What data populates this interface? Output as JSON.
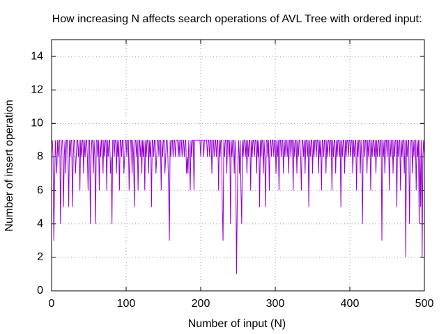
{
  "chart_data": {
    "type": "line",
    "title": "How increasing N affects search operations of AVL Tree with ordered input:",
    "x_label": "Number of input (N)",
    "y_label": "Number of insert operation",
    "xlim": [
      0,
      500
    ],
    "xticks": [
      0,
      100,
      200,
      300,
      400,
      500
    ],
    "ylim": [
      0,
      15
    ],
    "yticks": [
      0,
      2,
      4,
      6,
      8,
      10,
      12,
      14
    ],
    "grid": true,
    "x": [
      1,
      2,
      3,
      4,
      5,
      6,
      7,
      8,
      9,
      10,
      11,
      12,
      13,
      14,
      15,
      16,
      17,
      18,
      19,
      20,
      21,
      22,
      23,
      24,
      25,
      26,
      27,
      28,
      29,
      30,
      31,
      32,
      33,
      34,
      35,
      36,
      37,
      38,
      39,
      40,
      41,
      42,
      43,
      44,
      45,
      46,
      47,
      48,
      49,
      50,
      51,
      52,
      53,
      54,
      55,
      56,
      57,
      58,
      59,
      60,
      61,
      62,
      63,
      64,
      65,
      66,
      67,
      68,
      69,
      70,
      71,
      72,
      73,
      74,
      75,
      76,
      77,
      78,
      79,
      80,
      81,
      82,
      83,
      84,
      85,
      86,
      87,
      88,
      89,
      90,
      91,
      92,
      93,
      94,
      95,
      96,
      97,
      98,
      99,
      100,
      101,
      102,
      103,
      104,
      105,
      106,
      107,
      108,
      109,
      110,
      111,
      112,
      113,
      114,
      115,
      116,
      117,
      118,
      119,
      120,
      121,
      122,
      123,
      124,
      125,
      126,
      127,
      128,
      129,
      130,
      131,
      132,
      133,
      134,
      135,
      136,
      137,
      138,
      139,
      140,
      141,
      142,
      143,
      144,
      145,
      146,
      147,
      148,
      149,
      150,
      151,
      152,
      153,
      154,
      155,
      156,
      157,
      158,
      159,
      160,
      161,
      162,
      163,
      164,
      165,
      166,
      167,
      168,
      169,
      170,
      171,
      172,
      173,
      174,
      175,
      176,
      177,
      178,
      179,
      180,
      181,
      182,
      183,
      184,
      185,
      186,
      187,
      188,
      189,
      190,
      191,
      192,
      193,
      194,
      195,
      196,
      197,
      198,
      199,
      200,
      201,
      202,
      203,
      204,
      205,
      206,
      207,
      208,
      209,
      210,
      211,
      212,
      213,
      214,
      215,
      216,
      217,
      218,
      219,
      220,
      221,
      222,
      223,
      224,
      225,
      226,
      227,
      228,
      229,
      230,
      231,
      232,
      233,
      234,
      235,
      236,
      237,
      238,
      239,
      240,
      241,
      242,
      243,
      244,
      245,
      246,
      247,
      248,
      249,
      250,
      251,
      252,
      253,
      254,
      255,
      256,
      257,
      258,
      259,
      260,
      261,
      262,
      263,
      264,
      265,
      266,
      267,
      268,
      269,
      270,
      271,
      272,
      273,
      274,
      275,
      276,
      277,
      278,
      279,
      280,
      281,
      282,
      283,
      284,
      285,
      286,
      287,
      288,
      289,
      290,
      291,
      292,
      293,
      294,
      295,
      296,
      297,
      298,
      299,
      300,
      301,
      302,
      303,
      304,
      305,
      306,
      307,
      308,
      309,
      310,
      311,
      312,
      313,
      314,
      315,
      316,
      317,
      318,
      319,
      320,
      321,
      322,
      323,
      324,
      325,
      326,
      327,
      328,
      329,
      330,
      331,
      332,
      333,
      334,
      335,
      336,
      337,
      338,
      339,
      340,
      341,
      342,
      343,
      344,
      345,
      346,
      347,
      348,
      349,
      350,
      351,
      352,
      353,
      354,
      355,
      356,
      357,
      358,
      359,
      360,
      361,
      362,
      363,
      364,
      365,
      366,
      367,
      368,
      369,
      370,
      371,
      372,
      373,
      374,
      375,
      376,
      377,
      378,
      379,
      380,
      381,
      382,
      383,
      384,
      385,
      386,
      387,
      388,
      389,
      390,
      391,
      392,
      393,
      394,
      395,
      396,
      397,
      398,
      399,
      400,
      401,
      402,
      403,
      404,
      405,
      406,
      407,
      408,
      409,
      410,
      411,
      412,
      413,
      414,
      415,
      416,
      417,
      418,
      419,
      420,
      421,
      422,
      423,
      424,
      425,
      426,
      427,
      428,
      429,
      430,
      431,
      432,
      433,
      434,
      435,
      436,
      437,
      438,
      439,
      440,
      441,
      442,
      443,
      444,
      445,
      446,
      447,
      448,
      449,
      450,
      451,
      452,
      453,
      454,
      455,
      456,
      457,
      458,
      459,
      460,
      461,
      462,
      463,
      464,
      465,
      466,
      467,
      468,
      469,
      470,
      471,
      472,
      473,
      474,
      475,
      476,
      477,
      478,
      479,
      480,
      481,
      482,
      483,
      484,
      485,
      486,
      487,
      488,
      489,
      490,
      491,
      492,
      493,
      494,
      495,
      496,
      497,
      498,
      499,
      500
    ],
    "series": [
      {
        "color": "#9400d3",
        "values": [
          9,
          8,
          3,
          6,
          9,
          8,
          7,
          9,
          8,
          9,
          9,
          4,
          8,
          9,
          9,
          5,
          8,
          9,
          7,
          9,
          9,
          8,
          5,
          9,
          8,
          9,
          9,
          5,
          8,
          9,
          9,
          7,
          8,
          9,
          9,
          8,
          9,
          6,
          9,
          8,
          9,
          9,
          7,
          9,
          8,
          9,
          9,
          8,
          6,
          9,
          9,
          4,
          8,
          9,
          9,
          7,
          9,
          8,
          4,
          9,
          9,
          8,
          9,
          6,
          9,
          8,
          9,
          9,
          7,
          9,
          8,
          9,
          9,
          6,
          9,
          8,
          9,
          9,
          7,
          8,
          4,
          9,
          9,
          8,
          9,
          9,
          7,
          9,
          8,
          9,
          6,
          9,
          9,
          8,
          9,
          9,
          7,
          8,
          9,
          9,
          8,
          9,
          9,
          6,
          8,
          9,
          9,
          7,
          9,
          8,
          5,
          9,
          9,
          8,
          9,
          6,
          9,
          9,
          8,
          9,
          7,
          9,
          8,
          9,
          6,
          9,
          8,
          9,
          9,
          7,
          9,
          8,
          9,
          5,
          9,
          9,
          8,
          9,
          9,
          7,
          8,
          9,
          9,
          8,
          9,
          9,
          6,
          9,
          8,
          9,
          9,
          7,
          8,
          9,
          9,
          8,
          6,
          3,
          9,
          8,
          9,
          9,
          8,
          9,
          9,
          8,
          9,
          9,
          9,
          8,
          9,
          8,
          9,
          9,
          8,
          9,
          9,
          8,
          9,
          9,
          7,
          8,
          7,
          9,
          8,
          6,
          9,
          8,
          9,
          9,
          6,
          9,
          9,
          9,
          9,
          9,
          9,
          9,
          9,
          8,
          9,
          9,
          9,
          8,
          9,
          9,
          9,
          9,
          8,
          9,
          9,
          8,
          9,
          9,
          7,
          9,
          9,
          8,
          9,
          9,
          8,
          9,
          9,
          6,
          9,
          8,
          9,
          9,
          5,
          3,
          9,
          8,
          9,
          9,
          7,
          9,
          9,
          8,
          9,
          4,
          9,
          8,
          9,
          9,
          7,
          9,
          8,
          1,
          5,
          8,
          9,
          7,
          9,
          6,
          4,
          9,
          8,
          9,
          9,
          8,
          9,
          7,
          9,
          8,
          9,
          9,
          6,
          9,
          8,
          9,
          9,
          8,
          9,
          9,
          7,
          9,
          8,
          9,
          5,
          9,
          8,
          9,
          9,
          7,
          9,
          8,
          5,
          9,
          9,
          8,
          9,
          6,
          9,
          9,
          8,
          9,
          9,
          8,
          9,
          9,
          7,
          9,
          8,
          9,
          6,
          9,
          9,
          8,
          9,
          9,
          7,
          9,
          8,
          9,
          9,
          8,
          9,
          7,
          9,
          9,
          8,
          9,
          9,
          6,
          9,
          8,
          9,
          9,
          7,
          9,
          8,
          9,
          9,
          8,
          6,
          9,
          9,
          8,
          9,
          7,
          9,
          9,
          8,
          9,
          5,
          9,
          8,
          9,
          9,
          7,
          9,
          8,
          9,
          9,
          8,
          9,
          9,
          7,
          9,
          8,
          9,
          6,
          9,
          9,
          8,
          9,
          9,
          7,
          9,
          8,
          9,
          9,
          8,
          9,
          9,
          6,
          9,
          8,
          9,
          9,
          7,
          9,
          8,
          9,
          9,
          8,
          9,
          5,
          9,
          8,
          9,
          9,
          7,
          9,
          8,
          9,
          9,
          8,
          9,
          9,
          8,
          9,
          9,
          7,
          9,
          8,
          9,
          9,
          6,
          9,
          8,
          9,
          9,
          7,
          9,
          8,
          4,
          9,
          9,
          8,
          9,
          9,
          7,
          9,
          8,
          9,
          9,
          6,
          9,
          8,
          9,
          9,
          8,
          9,
          7,
          9,
          8,
          9,
          9,
          8,
          9,
          9,
          3,
          9,
          8,
          9,
          7,
          9,
          9,
          8,
          9,
          9,
          6,
          9,
          8,
          9,
          9,
          7,
          9,
          8,
          9,
          9,
          5,
          9,
          8,
          9,
          9,
          6,
          9,
          8,
          9,
          9,
          7,
          9,
          2,
          9,
          8,
          9,
          9,
          4,
          8,
          9,
          9,
          7,
          9,
          8,
          9,
          9,
          6,
          9,
          8,
          9,
          4,
          9,
          5,
          9,
          2,
          8,
          9,
          8
        ]
      }
    ]
  }
}
